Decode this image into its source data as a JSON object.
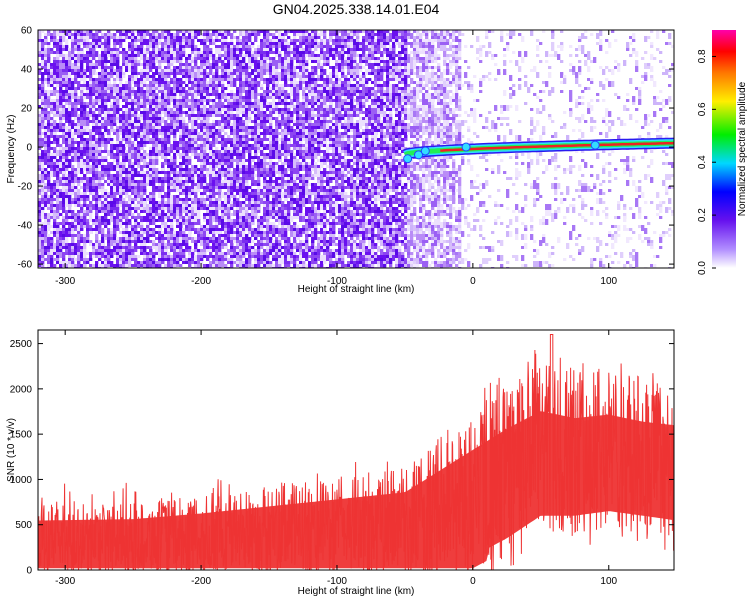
{
  "title": "GN04.2025.338.14.01.E04",
  "colors": {
    "snr_line": "#ee3333",
    "noise": "#7a2df0",
    "ridge_outer": "#33ddff",
    "ridge_mid": "#22ee55",
    "ridge_core": "#ee2222"
  },
  "chart_data": [
    {
      "type": "heatmap",
      "xlabel": "Height of straight line (km)",
      "ylabel": "Frequency (Hz)",
      "xlim": [
        -320,
        148
      ],
      "ylim": [
        -62,
        60
      ],
      "xticks": [
        -300,
        -200,
        -100,
        0,
        100
      ],
      "xtick_labels": [
        "-300",
        "-200",
        "-100",
        "0",
        "100"
      ],
      "yticks": [
        60,
        40,
        20,
        0,
        -20,
        -40,
        -60
      ],
      "ytick_labels": [
        "60",
        "40",
        "20",
        "0",
        "-20",
        "-40",
        "-60"
      ],
      "colorbar": {
        "label": "Normalized spectral amplitude",
        "range": [
          0,
          0.9
        ],
        "ticks": [
          0.0,
          0.2,
          0.4,
          0.6,
          0.8
        ],
        "tick_labels": [
          "0.0",
          "0.2",
          "0.4",
          "0.6",
          "0.8"
        ]
      },
      "features": {
        "dense_noise_x_range": [
          -320,
          -50
        ],
        "sparse_noise_x_range": [
          -50,
          148
        ],
        "ridge": {
          "x_range": [
            -50,
            148
          ],
          "freq_start_hz": -4,
          "freq_end_hz": 2,
          "peak_amplitude": 0.85
        }
      }
    },
    {
      "type": "line",
      "series": [
        {
          "name": "SNR",
          "color": "#ee3333"
        }
      ],
      "xlabel": "Height of straight line (km)",
      "ylabel": "SNR (10 * v/v)",
      "xlim": [
        -320,
        148
      ],
      "ylim": [
        0,
        2650
      ],
      "xticks": [
        -300,
        -200,
        -100,
        0,
        100
      ],
      "xtick_labels": [
        "-300",
        "-200",
        "-100",
        "0",
        "100"
      ],
      "yticks": [
        0,
        500,
        1000,
        1500,
        2000,
        2500
      ],
      "ytick_labels": [
        "0",
        "500",
        "1000",
        "1500",
        "2000",
        "2500"
      ],
      "envelope": {
        "x": [
          -320,
          -250,
          -200,
          -150,
          -100,
          -50,
          -25,
          0,
          25,
          50,
          75,
          100,
          125,
          148
        ],
        "upper": [
          700,
          720,
          800,
          900,
          1000,
          1100,
          1400,
          1700,
          2000,
          2250,
          2150,
          2200,
          2100,
          2050
        ],
        "lower": [
          0,
          0,
          0,
          0,
          0,
          0,
          0,
          0,
          200,
          450,
          450,
          500,
          450,
          400
        ],
        "peak": {
          "x": 58,
          "y": 2600
        }
      }
    }
  ]
}
